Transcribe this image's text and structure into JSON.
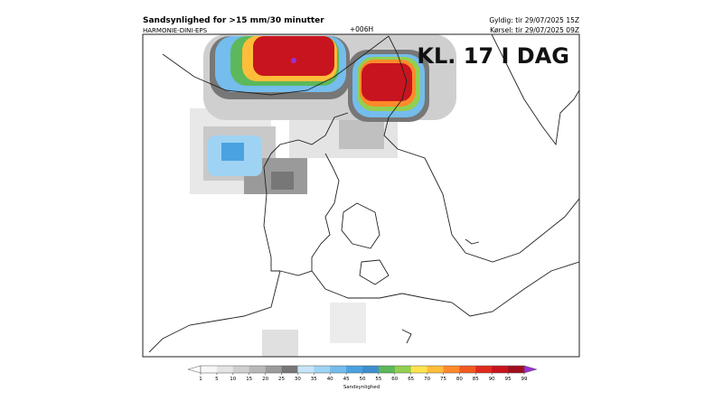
{
  "header": {
    "title": "Sandsynlighed for >15 mm/30 minutter",
    "model": "HARMONIE-DINI-EPS",
    "lead": "+006H",
    "valid": "Gyldig: tir 29/07/2025 15Z",
    "run": "Kørsel: tir 29/07/2025 09Z"
  },
  "overlay": "KL. 17 I DAG",
  "colorbar": {
    "label": "Sandsynlighed",
    "ticks": [
      1,
      5,
      10,
      15,
      20,
      25,
      30,
      35,
      40,
      45,
      50,
      55,
      60,
      65,
      70,
      75,
      80,
      85,
      90,
      95,
      99
    ],
    "colors": [
      "#f7f7f7",
      "#e4e4e4",
      "#cfcfcf",
      "#b9b9b9",
      "#9c9c9c",
      "#777777",
      "#c6e6f8",
      "#9fd3f3",
      "#74bdec",
      "#4aa2e0",
      "#3f8fd0",
      "#5cb85a",
      "#93cf4f",
      "#ffe34d",
      "#ffbd3a",
      "#ff8a2a",
      "#f25a20",
      "#e02a1c",
      "#c8141e",
      "#a00f1e"
    ],
    "under_color": "#ffffff",
    "over_color": "#9b30d9"
  }
}
